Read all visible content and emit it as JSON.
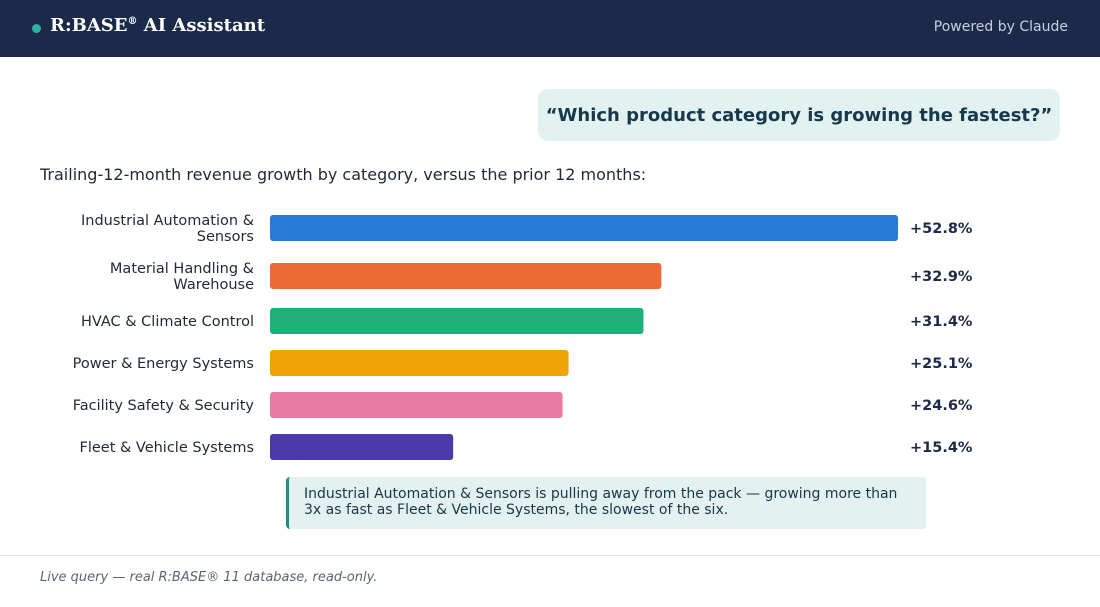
{
  "header": {
    "brand": "R:BASE",
    "brand_mark": "®",
    "brand_suffix": " AI Assistant",
    "powered_by": "Powered by Claude",
    "status_dot_icon": "status-dot-icon"
  },
  "question": "“Which product category is growing the fastest?”",
  "intro": "Trailing-12-month revenue growth by category, versus the prior 12 months:",
  "chart_data": {
    "type": "bar",
    "orientation": "horizontal",
    "categories": [
      [
        "Industrial Automation &",
        "Sensors"
      ],
      [
        "Material Handling &",
        "Warehouse"
      ],
      [
        "HVAC & Climate Control"
      ],
      [
        "Power & Energy Systems"
      ],
      [
        "Facility Safety & Security"
      ],
      [
        "Fleet & Vehicle Systems"
      ]
    ],
    "values": [
      52.8,
      32.9,
      31.4,
      25.1,
      24.6,
      15.4
    ],
    "value_labels": [
      "+52.8%",
      "+32.9%",
      "+31.4%",
      "+25.1%",
      "+24.6%",
      "+15.4%"
    ],
    "colors": [
      "#2979d6",
      "#ee6a35",
      "#1fb07a",
      "#eea407",
      "#e87ba4",
      "#4b3aa8"
    ],
    "xlim": [
      0,
      52.8
    ],
    "unit": "%",
    "grid": false,
    "legend": "none"
  },
  "callout": "Industrial Automation & Sensors is pulling away from the pack — growing more than 3x as fast as Fleet & Vehicle Systems, the slowest of the six.",
  "footer": "Live query — real R:BASE® 11 database, read-only.",
  "colors": {
    "header_bg": "#1c2a4a",
    "accent": "#2bb3a1",
    "question_bg": "#e2f2f1",
    "callout_bg": "#e3f1f0",
    "callout_border": "#1f8f80",
    "value_text": "#1c2a4a"
  }
}
